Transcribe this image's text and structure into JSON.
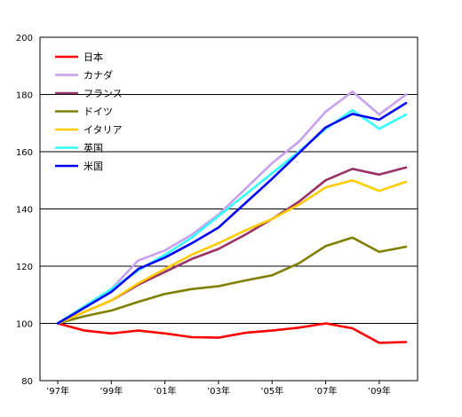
{
  "chart_data": {
    "type": "line",
    "title": "",
    "xlabel": "",
    "ylabel": "",
    "ylim": [
      80,
      200
    ],
    "yticks": [
      80,
      100,
      120,
      140,
      160,
      180,
      200
    ],
    "grid": true,
    "legend_position": "top-left",
    "x": [
      1997,
      1998,
      1999,
      2000,
      2001,
      2002,
      2003,
      2004,
      2005,
      2006,
      2007,
      2008,
      2009,
      2010
    ],
    "x_tick_labels": [
      {
        "x": 1997,
        "label": "’97年"
      },
      {
        "x": 1999,
        "label": "’99年"
      },
      {
        "x": 2001,
        "label": "’01年"
      },
      {
        "x": 2003,
        "label": "’03年"
      },
      {
        "x": 2005,
        "label": "’05年"
      },
      {
        "x": 2007,
        "label": "’07年"
      },
      {
        "x": 2009,
        "label": "’09年"
      }
    ],
    "series": [
      {
        "name": "日本",
        "color": "#ff0000",
        "values": [
          100,
          97.5,
          96.5,
          97.5,
          96.5,
          95.2,
          95,
          96.7,
          97.5,
          98.5,
          100,
          98.3,
          93.2,
          93.5
        ]
      },
      {
        "name": "カナダ",
        "color": "#c8a0f0",
        "values": [
          100,
          106,
          112,
          122,
          125.5,
          131,
          138,
          147,
          156,
          163.5,
          174,
          181,
          173,
          180
        ]
      },
      {
        "name": "フランス",
        "color": "#993366",
        "values": [
          100,
          104,
          108,
          113.5,
          118,
          122.5,
          126,
          131,
          136.5,
          142.5,
          150,
          154,
          152,
          154.5
        ]
      },
      {
        "name": "ドイツ",
        "color": "#808000",
        "values": [
          100,
          102.5,
          104.5,
          107.5,
          110.3,
          112,
          113,
          115,
          116.8,
          121,
          127,
          130,
          125,
          126.8
        ]
      },
      {
        "name": "イタリア",
        "color": "#ffcc00",
        "values": [
          100,
          104,
          108,
          114,
          119,
          124,
          128,
          132.5,
          136.5,
          141.5,
          147.5,
          150,
          146.3,
          149.5
        ]
      },
      {
        "name": "英国",
        "color": "#33ffff",
        "values": [
          100,
          106,
          112,
          118.5,
          124,
          130,
          137.5,
          145,
          152.5,
          160,
          168,
          174.5,
          168,
          173
        ]
      },
      {
        "name": "米国",
        "color": "#0000ff",
        "values": [
          100,
          105.5,
          111,
          119,
          123,
          128,
          133.5,
          142,
          150.5,
          159.5,
          168.5,
          173.2,
          171.2,
          177
        ]
      }
    ]
  }
}
